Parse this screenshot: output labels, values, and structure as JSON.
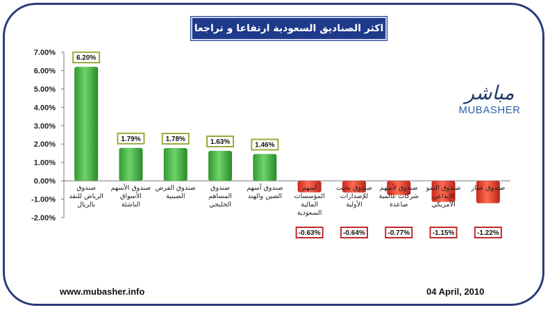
{
  "title": "اكثر الصناديق السعودية ارتفاعا و تراجعا",
  "logo": {
    "arabic": "مباشر",
    "english": "MUBASHER"
  },
  "footer": {
    "website": "www.mubasher.info",
    "date": "04 April, 2010"
  },
  "colors": {
    "positive": "#3cae3c",
    "negative": "#e23b2e",
    "positive_label_border": "#9aaa3a",
    "negative_label_border": "#c0282a",
    "title_bg": "#1f3a8a",
    "frame": "#2b3a7a"
  },
  "chart_data": {
    "type": "bar",
    "categories": [
      [
        "صندوق",
        "الرياض للنقد",
        "بالريال"
      ],
      [
        "صندوق الأسهم",
        "الأسواق",
        "الناشئة"
      ],
      [
        "صندوق الفرص",
        "الصينية"
      ],
      [
        "صندوق",
        "المساهم",
        "الخليجي"
      ],
      [
        "صندوق أسهم",
        "الصين والهند"
      ],
      [
        "أسهم",
        "المؤسسات",
        "المالية",
        "السعودية"
      ],
      [
        "صندوق بخيت",
        "للإصدارات",
        "الأولية"
      ],
      [
        "صندوق لأسهم",
        "شركات عالمية",
        "صاعدة"
      ],
      [
        "صندوق النمو",
        "الإبداعي",
        "الأمريكي"
      ],
      [
        "صندوق عقار"
      ]
    ],
    "values": [
      6.2,
      1.79,
      1.78,
      1.63,
      1.46,
      -0.63,
      -0.64,
      -0.77,
      -1.15,
      -1.22
    ],
    "value_labels": [
      "6.20%",
      "1.79%",
      "1.78%",
      "1.63%",
      "1.46%",
      "-0.63%",
      "-0.64%",
      "-0.77%",
      "-1.15%",
      "-1.22%"
    ],
    "y_ticks": [
      "7.00%",
      "6.00%",
      "5.00%",
      "4.00%",
      "3.00%",
      "2.00%",
      "1.00%",
      "0.00%",
      "-1.00%",
      "-2.00%"
    ],
    "ylim": [
      -2,
      7
    ],
    "grid": false,
    "legend": "none"
  }
}
